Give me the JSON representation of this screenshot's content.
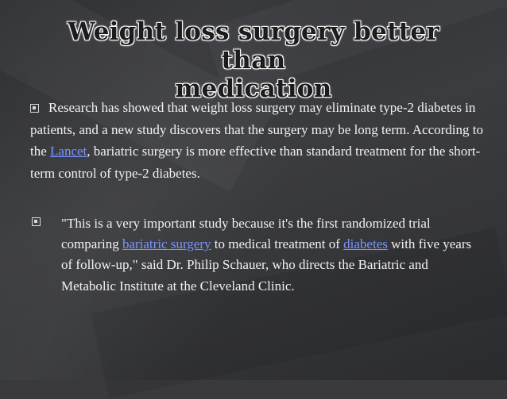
{
  "slide": {
    "title_line1": "Weight loss surgery better than",
    "title_line2": "medication",
    "para": {
      "text_1": "Research has showed that weight loss surgery may eliminate type-2 diabetes in patients, and a new study discovers that the surgery may be long term. According to the ",
      "link": "Lancet",
      "text_2": ", bariatric surgery is more effective than standard treatment for the short-term control of type-2 diabetes."
    },
    "quote": {
      "text_1": "\"This is a very important study because it's the first randomized trial comparing ",
      "link_1": "bariatric surgery",
      "text_2": " to medical treatment of ",
      "link_2": "diabetes",
      "text_3": " with five years of follow-up,\" said Dr. Philip Schauer, who directs the Bariatric and Metabolic Institute at the Cleveland Clinic."
    }
  },
  "colors": {
    "background": "#3a3a3c",
    "text": "#f2f2f2",
    "link": "#7b94ff",
    "title_fill": "#1c1c1c",
    "title_glow": "#ffffff"
  },
  "icons": {
    "bullet": "square-bullet-icon"
  }
}
